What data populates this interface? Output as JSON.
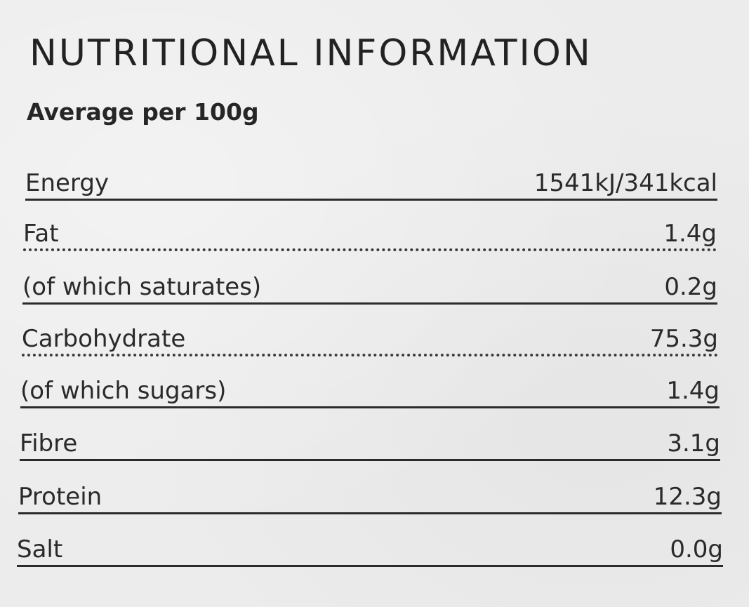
{
  "title": "NUTRITIONAL INFORMATION",
  "subtitle": "Average per 100g",
  "rows": [
    {
      "label": "Energy",
      "value": "1541kJ/341kcal",
      "divider": "solid"
    },
    {
      "label": "Fat",
      "value": "1.4g",
      "divider": "dotted"
    },
    {
      "label": "(of which saturates)",
      "value": "0.2g",
      "divider": "solid"
    },
    {
      "label": "Carbohydrate",
      "value": "75.3g",
      "divider": "dotted"
    },
    {
      "label": "(of which sugars)",
      "value": "1.4g",
      "divider": "solid"
    },
    {
      "label": "Fibre",
      "value": "3.1g",
      "divider": "solid"
    },
    {
      "label": "Protein",
      "value": "12.3g",
      "divider": "solid"
    },
    {
      "label": "Salt",
      "value": "0.0g",
      "divider": "solid"
    }
  ]
}
